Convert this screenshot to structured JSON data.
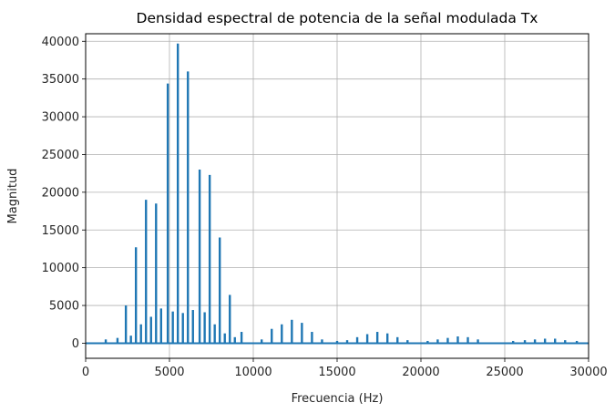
{
  "chart_data": {
    "type": "line",
    "title": "Densidad espectral de potencia de la señal modulada Tx",
    "xlabel": "Frecuencia (Hz)",
    "ylabel": "Magnitud",
    "xlim": [
      0,
      30000
    ],
    "ylim": [
      -2000,
      41000
    ],
    "grid": true,
    "xticks": [
      0,
      5000,
      10000,
      15000,
      20000,
      25000,
      30000
    ],
    "yticks": [
      0,
      5000,
      10000,
      15000,
      20000,
      25000,
      30000,
      35000,
      40000
    ],
    "line_color": "#1f77b4",
    "series": [
      {
        "type": "stem",
        "peaks": [
          [
            1200,
            500
          ],
          [
            1900,
            700
          ],
          [
            2400,
            5000
          ],
          [
            2700,
            1000
          ],
          [
            3000,
            12700
          ],
          [
            3300,
            2500
          ],
          [
            3600,
            19000
          ],
          [
            3900,
            3500
          ],
          [
            4200,
            18500
          ],
          [
            4500,
            4600
          ],
          [
            4900,
            34400
          ],
          [
            5200,
            4200
          ],
          [
            5500,
            39700
          ],
          [
            5800,
            4000
          ],
          [
            6100,
            36000
          ],
          [
            6400,
            4400
          ],
          [
            6800,
            23000
          ],
          [
            7100,
            4100
          ],
          [
            7400,
            22300
          ],
          [
            7700,
            2500
          ],
          [
            8000,
            14000
          ],
          [
            8300,
            1300
          ],
          [
            8600,
            6400
          ],
          [
            8900,
            800
          ],
          [
            9300,
            1500
          ],
          [
            10500,
            500
          ],
          [
            11100,
            1900
          ],
          [
            11700,
            2500
          ],
          [
            12300,
            3100
          ],
          [
            12900,
            2700
          ],
          [
            13500,
            1500
          ],
          [
            14100,
            500
          ],
          [
            15000,
            300
          ],
          [
            15600,
            400
          ],
          [
            16200,
            800
          ],
          [
            16800,
            1200
          ],
          [
            17400,
            1500
          ],
          [
            18000,
            1300
          ],
          [
            18600,
            800
          ],
          [
            19200,
            400
          ],
          [
            20400,
            300
          ],
          [
            21000,
            500
          ],
          [
            21600,
            700
          ],
          [
            22200,
            900
          ],
          [
            22800,
            800
          ],
          [
            23400,
            500
          ],
          [
            25500,
            300
          ],
          [
            26200,
            400
          ],
          [
            26800,
            500
          ],
          [
            27400,
            600
          ],
          [
            28000,
            600
          ],
          [
            28600,
            400
          ],
          [
            29300,
            300
          ]
        ]
      }
    ]
  }
}
